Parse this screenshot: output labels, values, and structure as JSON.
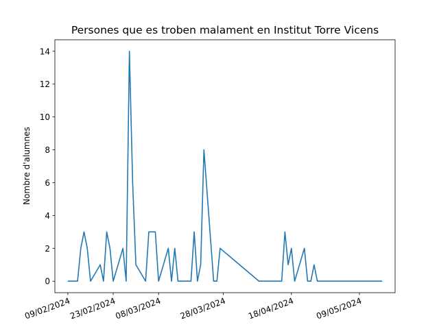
{
  "chart_data": {
    "type": "line",
    "title": "Persones que es troben malament en Institut Torre Vicens",
    "xlabel": "",
    "ylabel": "Nombre d'alumnes",
    "x_tick_labels": [
      "09/02/2024",
      "23/02/2024",
      "08/03/2024",
      "28/03/2024",
      "18/04/2024",
      "09/05/2024"
    ],
    "x_ticks": [
      "2024-02-09",
      "2024-02-23",
      "2024-03-08",
      "2024-03-28",
      "2024-04-18",
      "2024-05-09"
    ],
    "xlim": [
      "2024-02-05",
      "2024-05-20"
    ],
    "ylim": [
      -0.7,
      14.7
    ],
    "y_ticks": [
      0,
      2,
      4,
      6,
      8,
      10,
      12,
      14
    ],
    "grid": false,
    "series": [
      {
        "color": "#1f77b4",
        "x": [
          "2024-02-09",
          "2024-02-12",
          "2024-02-13",
          "2024-02-14",
          "2024-02-15",
          "2024-02-16",
          "2024-02-19",
          "2024-02-20",
          "2024-02-21",
          "2024-02-22",
          "2024-02-23",
          "2024-02-26",
          "2024-02-27",
          "2024-02-28",
          "2024-02-29",
          "2024-03-01",
          "2024-03-04",
          "2024-03-05",
          "2024-03-06",
          "2024-03-07",
          "2024-03-08",
          "2024-03-11",
          "2024-03-12",
          "2024-03-13",
          "2024-03-14",
          "2024-03-15",
          "2024-03-18",
          "2024-03-19",
          "2024-03-20",
          "2024-03-21",
          "2024-03-22",
          "2024-03-25",
          "2024-03-26",
          "2024-03-27",
          "2024-04-08",
          "2024-04-09",
          "2024-04-10",
          "2024-04-11",
          "2024-04-12",
          "2024-04-15",
          "2024-04-16",
          "2024-04-17",
          "2024-04-18",
          "2024-04-19",
          "2024-04-22",
          "2024-04-23",
          "2024-04-24",
          "2024-04-25",
          "2024-04-26",
          "2024-04-29",
          "2024-04-30",
          "2024-05-02",
          "2024-05-03",
          "2024-05-06",
          "2024-05-07",
          "2024-05-08",
          "2024-05-09",
          "2024-05-10",
          "2024-05-13",
          "2024-05-14",
          "2024-05-15",
          "2024-05-16"
        ],
        "values": [
          0,
          0,
          2,
          3,
          2,
          0,
          1,
          0,
          3,
          2,
          0,
          2,
          0,
          14,
          6,
          1,
          0,
          3,
          3,
          3,
          0,
          2,
          0,
          2,
          0,
          0,
          0,
          3,
          0,
          1,
          8,
          0,
          0,
          2,
          0,
          0,
          0,
          0,
          0,
          0,
          3,
          1,
          2,
          0,
          2,
          0,
          0,
          1,
          0,
          0,
          0,
          0,
          0,
          0,
          0,
          0,
          0,
          0,
          0,
          0,
          0,
          0
        ]
      }
    ]
  }
}
